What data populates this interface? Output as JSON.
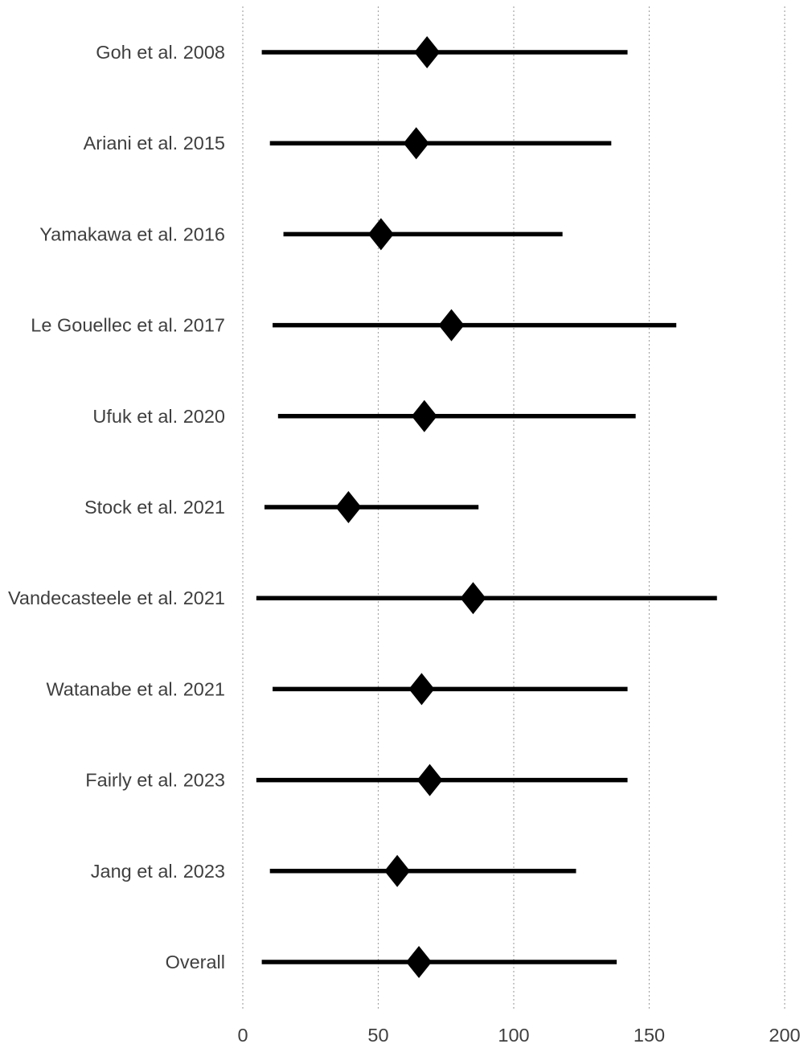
{
  "chart_data": {
    "type": "scatter",
    "subtype": "forest-plot",
    "title": "",
    "xlabel": "",
    "ylabel": "",
    "xlim": [
      0,
      200
    ],
    "x_ticks": [
      0,
      50,
      100,
      150,
      200
    ],
    "grid": "vertical-dashed",
    "legend": "none",
    "marker": "diamond",
    "colors": {
      "marker": "#000000",
      "ci_line": "#000000",
      "grid": "#a6a6a6",
      "text": "#3f3f3f"
    },
    "studies": [
      {
        "label": "Goh et al. 2008",
        "estimate": 68,
        "ci_low": 7,
        "ci_high": 142
      },
      {
        "label": "Ariani et al. 2015",
        "estimate": 64,
        "ci_low": 10,
        "ci_high": 136
      },
      {
        "label": "Yamakawa et al. 2016",
        "estimate": 51,
        "ci_low": 15,
        "ci_high": 118
      },
      {
        "label": "Le Gouellec et al. 2017",
        "estimate": 77,
        "ci_low": 11,
        "ci_high": 160
      },
      {
        "label": "Ufuk et al. 2020",
        "estimate": 67,
        "ci_low": 13,
        "ci_high": 145
      },
      {
        "label": "Stock et al. 2021",
        "estimate": 39,
        "ci_low": 8,
        "ci_high": 87
      },
      {
        "label": "Vandecasteele et al. 2021",
        "estimate": 85,
        "ci_low": 5,
        "ci_high": 175
      },
      {
        "label": "Watanabe et al. 2021",
        "estimate": 66,
        "ci_low": 11,
        "ci_high": 142
      },
      {
        "label": "Fairly et al. 2023",
        "estimate": 69,
        "ci_low": 5,
        "ci_high": 142
      },
      {
        "label": "Jang et al. 2023",
        "estimate": 57,
        "ci_low": 10,
        "ci_high": 123
      },
      {
        "label": "Overall",
        "estimate": 65,
        "ci_low": 7,
        "ci_high": 138
      }
    ]
  }
}
